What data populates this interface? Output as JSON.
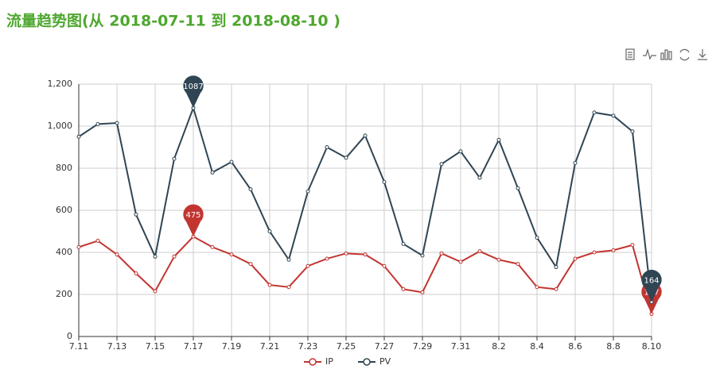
{
  "chart_data": {
    "type": "line",
    "title": "流量趋势图(从 2018-07-11 到 2018-08-10 )",
    "categories": [
      "7.11",
      null,
      "7.13",
      null,
      "7.15",
      null,
      "7.17",
      null,
      "7.19",
      null,
      "7.21",
      null,
      "7.23",
      null,
      "7.25",
      null,
      "7.27",
      null,
      "7.29",
      null,
      "7.31",
      null,
      "8.2",
      null,
      "8.4",
      null,
      "8.6",
      null,
      "8.8",
      null,
      "8.10"
    ],
    "series": [
      {
        "name": "IP",
        "color": "#c23531",
        "values": [
          425,
          455,
          390,
          300,
          215,
          380,
          475,
          425,
          390,
          345,
          245,
          235,
          335,
          370,
          395,
          390,
          335,
          225,
          210,
          395,
          355,
          405,
          365,
          345,
          235,
          225,
          370,
          400,
          410,
          435,
          107
        ]
      },
      {
        "name": "PV",
        "color": "#2f4554",
        "values": [
          950,
          1010,
          1015,
          580,
          380,
          845,
          1087,
          780,
          830,
          700,
          500,
          365,
          690,
          900,
          850,
          955,
          735,
          440,
          385,
          820,
          880,
          755,
          935,
          705,
          470,
          330,
          825,
          1065,
          1050,
          975,
          164
        ]
      }
    ],
    "ylim": [
      0,
      1200
    ],
    "yticks": [
      0,
      200,
      400,
      600,
      800,
      {
        "value": 1000,
        "label": "1,000"
      },
      {
        "value": 1200,
        "label": "1,200"
      }
    ],
    "grid": true,
    "mark_points": [
      "max",
      "min"
    ],
    "legend": "bottom"
  }
}
